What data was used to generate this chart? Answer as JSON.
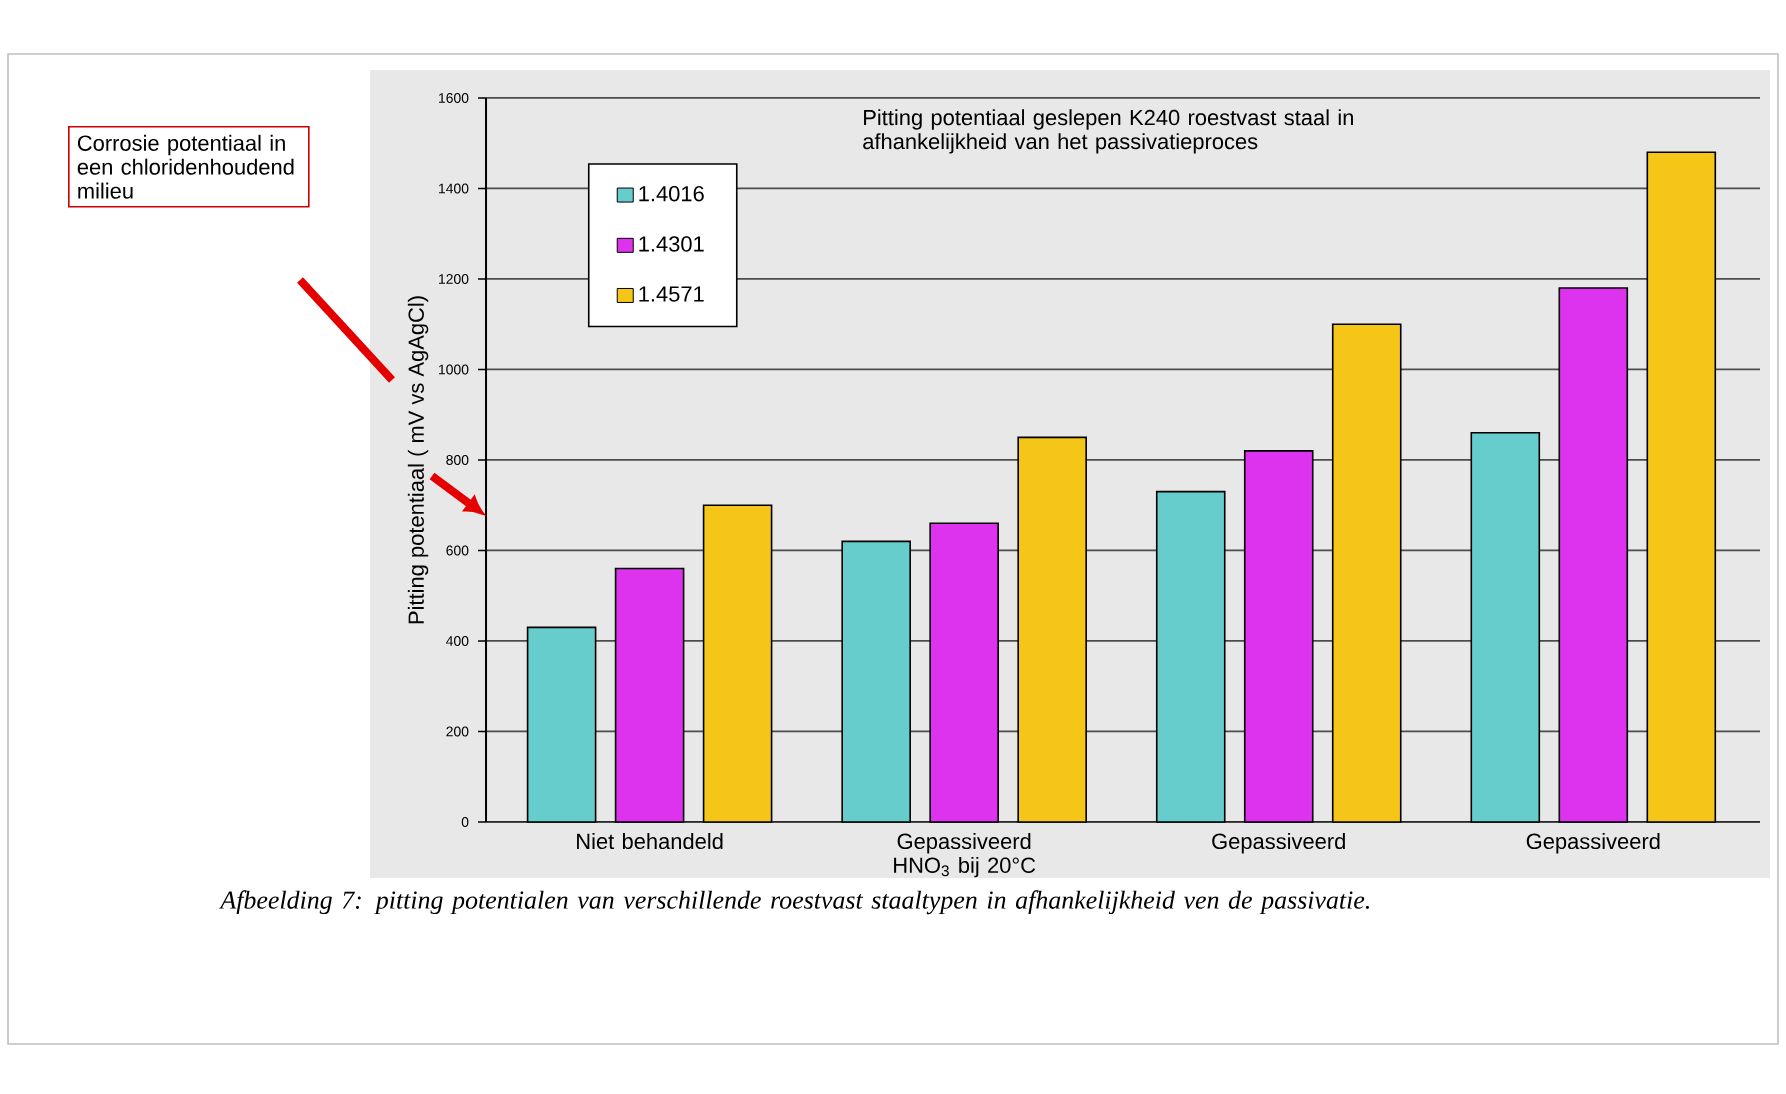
{
  "chart_data": {
    "type": "bar",
    "title": "Pitting potentiaal geslepen K240 roestvast staal in afhankelijkheid van het passivatieproces",
    "ylabel": "Pitting potentiaal  ( mV vs AgAgCl)",
    "categories": [
      "Niet behandeld",
      "Gepassiveerd HNO$_{3}$ bij 20°C",
      "Gepassiveerd",
      "Gepassiveerd"
    ],
    "series": [
      {
        "name": "1.4016",
        "color": "#66cccc",
        "values": [
          430,
          620,
          730,
          860
        ]
      },
      {
        "name": "1.4301",
        "color": "#dd33ee",
        "values": [
          560,
          660,
          820,
          1180
        ]
      },
      {
        "name": "1.4571",
        "color": "#f5c518",
        "values": [
          700,
          850,
          1100,
          1480
        ]
      }
    ],
    "ylim": [
      0,
      1600
    ],
    "yticks": [
      0,
      200,
      400,
      600,
      800,
      1000,
      1200,
      1400,
      1600
    ],
    "grid": "y",
    "legend": "top left",
    "annotations": [
      "Corrosie potentiaal in een chloridenhoudend milieu",
      "Afbeelding 7: pitting potentialen van verschillende roestvast staaltypen in afhankelijkheid ven de passivatie."
    ]
  }
}
